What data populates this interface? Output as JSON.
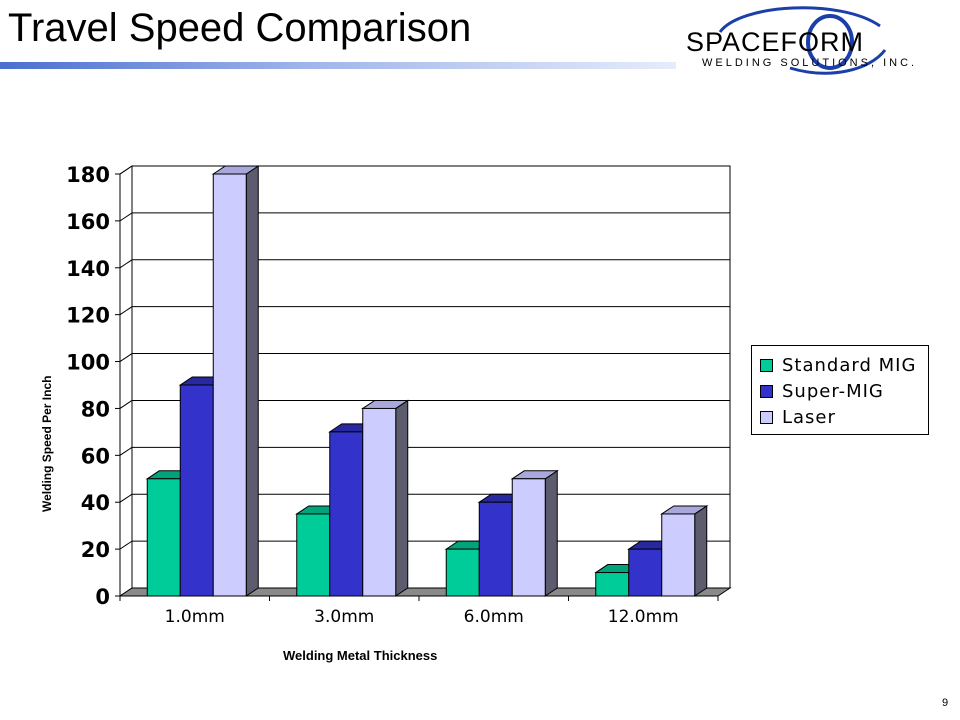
{
  "slide": {
    "title": "Travel Speed Comparison",
    "page_number": "9"
  },
  "logo": {
    "line1": "SPACEFORM",
    "line2": "WELDING SOLUTIONS, INC."
  },
  "colors": {
    "title_bar": "#4a6fd0",
    "series": [
      "#00cc99",
      "#3333cc",
      "#ccccff"
    ],
    "series_top": [
      "#00a37a",
      "#28289f",
      "#a8a8dd"
    ],
    "side": "#5c5c6e",
    "floor": "#8a8a8a"
  },
  "chart_data": {
    "type": "bar",
    "categories": [
      "1.0mm",
      "3.0mm",
      "6.0mm",
      "12.0mm"
    ],
    "series": [
      {
        "name": "Standard MIG",
        "values": [
          50,
          35,
          20,
          10
        ]
      },
      {
        "name": "Super-MIG",
        "values": [
          90,
          70,
          40,
          20
        ]
      },
      {
        "name": "Laser",
        "values": [
          180,
          80,
          50,
          35
        ]
      }
    ],
    "xlabel": "Welding Metal Thickness",
    "ylabel": "Welding Speed Per Inch",
    "ylim": [
      0,
      180
    ],
    "yticks": [
      0,
      20,
      40,
      60,
      80,
      100,
      120,
      140,
      160,
      180
    ],
    "grid": true,
    "legend_position": "right"
  }
}
